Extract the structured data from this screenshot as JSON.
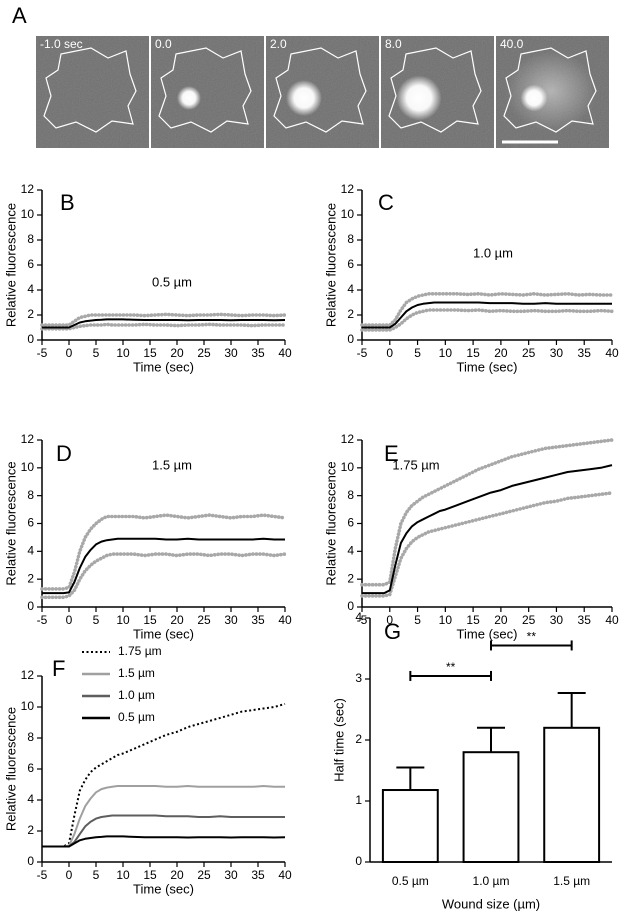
{
  "panel_a": {
    "label": "A",
    "frames": [
      "-1.0 sec",
      "0.0",
      "2.0",
      "8.0",
      "40.0"
    ]
  },
  "chart_data": [
    {
      "type": "scatter",
      "label": "B",
      "annotation": "0.5 µm",
      "xlabel": "Time (sec)",
      "ylabel": "Relative fluorescence",
      "x": [
        -5,
        -4,
        -3,
        -2,
        -1,
        0,
        1,
        2,
        3,
        4,
        5,
        6,
        7,
        8,
        9,
        10,
        12,
        14,
        16,
        18,
        20,
        22,
        24,
        26,
        28,
        30,
        32,
        34,
        36,
        38,
        40
      ],
      "xlim": [
        -5,
        40
      ],
      "xticks": [
        -5,
        0,
        5,
        10,
        15,
        20,
        25,
        30,
        35,
        40
      ],
      "ylim": [
        0,
        12
      ],
      "yticks": [
        0,
        2,
        4,
        6,
        8,
        10,
        12
      ],
      "series": [
        {
          "color": "#a8a8a8",
          "style": "dots",
          "values": [
            1.2,
            1.2,
            1.2,
            1.2,
            1.2,
            1.2,
            1.5,
            1.8,
            1.9,
            2.0,
            2.0,
            2.0,
            2.0,
            2.0,
            2.0,
            2.0,
            2.0,
            1.95,
            2.0,
            2.05,
            2.0,
            1.95,
            2.0,
            2.0,
            2.05,
            2.0,
            1.95,
            2.0,
            2.0,
            1.95,
            2.0
          ]
        },
        {
          "color": "#a8a8a8",
          "style": "dots",
          "values": [
            0.9,
            0.9,
            0.9,
            0.9,
            0.9,
            0.9,
            1.0,
            1.1,
            1.15,
            1.2,
            1.2,
            1.2,
            1.25,
            1.2,
            1.2,
            1.2,
            1.2,
            1.25,
            1.2,
            1.2,
            1.15,
            1.2,
            1.2,
            1.25,
            1.2,
            1.2,
            1.2,
            1.15,
            1.2,
            1.2,
            1.2
          ]
        },
        {
          "color": "#000000",
          "style": "solid",
          "values": [
            1.0,
            1.0,
            1.0,
            1.0,
            1.0,
            1.0,
            1.2,
            1.4,
            1.5,
            1.55,
            1.6,
            1.62,
            1.65,
            1.65,
            1.65,
            1.65,
            1.62,
            1.6,
            1.6,
            1.6,
            1.6,
            1.58,
            1.6,
            1.6,
            1.6,
            1.58,
            1.6,
            1.6,
            1.6,
            1.58,
            1.6
          ]
        }
      ]
    },
    {
      "type": "scatter",
      "label": "C",
      "annotation": "1.0 µm",
      "xlabel": "Time (sec)",
      "ylabel": "Relative fluorescence",
      "x": [
        -5,
        -4,
        -3,
        -2,
        -1,
        0,
        1,
        2,
        3,
        4,
        5,
        6,
        7,
        8,
        9,
        10,
        12,
        14,
        16,
        18,
        20,
        22,
        24,
        26,
        28,
        30,
        32,
        34,
        36,
        38,
        40
      ],
      "xlim": [
        -5,
        40
      ],
      "xticks": [
        -5,
        0,
        5,
        10,
        15,
        20,
        25,
        30,
        35,
        40
      ],
      "ylim": [
        0,
        12
      ],
      "yticks": [
        0,
        2,
        4,
        6,
        8,
        10,
        12
      ],
      "series": [
        {
          "color": "#a8a8a8",
          "style": "dots",
          "values": [
            1.2,
            1.2,
            1.2,
            1.2,
            1.2,
            1.2,
            1.6,
            2.4,
            3.0,
            3.3,
            3.5,
            3.6,
            3.7,
            3.7,
            3.7,
            3.7,
            3.7,
            3.65,
            3.7,
            3.6,
            3.7,
            3.65,
            3.6,
            3.7,
            3.6,
            3.65,
            3.7,
            3.6,
            3.65,
            3.6,
            3.6
          ]
        },
        {
          "color": "#a8a8a8",
          "style": "dots",
          "values": [
            0.8,
            0.8,
            0.8,
            0.8,
            0.8,
            0.8,
            1.0,
            1.3,
            1.7,
            2.0,
            2.2,
            2.3,
            2.4,
            2.4,
            2.4,
            2.4,
            2.4,
            2.35,
            2.4,
            2.3,
            2.35,
            2.3,
            2.3,
            2.35,
            2.3,
            2.3,
            2.35,
            2.3,
            2.3,
            2.35,
            2.3
          ]
        },
        {
          "color": "#000000",
          "style": "solid",
          "values": [
            1.0,
            1.0,
            1.0,
            1.0,
            1.0,
            1.0,
            1.3,
            1.8,
            2.3,
            2.6,
            2.8,
            2.9,
            2.95,
            3.0,
            3.0,
            3.0,
            3.0,
            3.0,
            3.0,
            2.95,
            2.95,
            2.95,
            2.9,
            2.9,
            2.95,
            2.9,
            2.9,
            2.9,
            2.9,
            2.9,
            2.9
          ]
        }
      ]
    },
    {
      "type": "scatter",
      "label": "D",
      "annotation": "1.5 µm",
      "xlabel": "Time (sec)",
      "ylabel": "Relative fluorescence",
      "x": [
        -5,
        -4,
        -3,
        -2,
        -1,
        0,
        1,
        2,
        3,
        4,
        5,
        6,
        7,
        8,
        9,
        10,
        12,
        14,
        16,
        18,
        20,
        22,
        24,
        26,
        28,
        30,
        32,
        34,
        36,
        38,
        40
      ],
      "xlim": [
        -5,
        40
      ],
      "xticks": [
        -5,
        0,
        5,
        10,
        15,
        20,
        25,
        30,
        35,
        40
      ],
      "ylim": [
        0,
        12
      ],
      "yticks": [
        0,
        2,
        4,
        6,
        8,
        10,
        12
      ],
      "series": [
        {
          "color": "#a8a8a8",
          "style": "dots",
          "values": [
            1.3,
            1.3,
            1.3,
            1.3,
            1.3,
            1.4,
            2.5,
            4.0,
            5.0,
            5.6,
            6.0,
            6.3,
            6.5,
            6.5,
            6.5,
            6.5,
            6.5,
            6.4,
            6.5,
            6.6,
            6.5,
            6.4,
            6.5,
            6.6,
            6.5,
            6.4,
            6.5,
            6.5,
            6.6,
            6.5,
            6.4
          ]
        },
        {
          "color": "#a8a8a8",
          "style": "dots",
          "values": [
            0.7,
            0.7,
            0.7,
            0.7,
            0.7,
            0.8,
            1.2,
            2.0,
            2.6,
            3.0,
            3.3,
            3.5,
            3.7,
            3.8,
            3.8,
            3.8,
            3.8,
            3.7,
            3.8,
            3.8,
            3.7,
            3.8,
            3.8,
            3.7,
            3.8,
            3.8,
            3.7,
            3.8,
            3.8,
            3.7,
            3.8
          ]
        },
        {
          "color": "#000000",
          "style": "solid",
          "values": [
            1.0,
            1.0,
            1.0,
            1.0,
            1.0,
            1.05,
            1.8,
            2.8,
            3.6,
            4.1,
            4.5,
            4.7,
            4.8,
            4.85,
            4.9,
            4.9,
            4.9,
            4.9,
            4.9,
            4.85,
            4.85,
            4.9,
            4.85,
            4.85,
            4.85,
            4.85,
            4.85,
            4.85,
            4.9,
            4.85,
            4.85
          ]
        }
      ]
    },
    {
      "type": "scatter",
      "label": "E",
      "annotation": "1.75 µm",
      "xlabel": "Time (sec)",
      "ylabel": "Relative fluorescence",
      "x": [
        -5,
        -4,
        -3,
        -2,
        -1,
        0,
        1,
        2,
        3,
        4,
        5,
        6,
        7,
        8,
        9,
        10,
        12,
        14,
        16,
        18,
        20,
        22,
        24,
        26,
        28,
        30,
        32,
        34,
        36,
        38,
        40
      ],
      "xlim": [
        -5,
        40
      ],
      "xticks": [
        -5,
        0,
        5,
        10,
        15,
        20,
        25,
        30,
        35,
        40
      ],
      "ylim": [
        0,
        12
      ],
      "yticks": [
        0,
        2,
        4,
        6,
        8,
        10,
        12
      ],
      "series": [
        {
          "color": "#a8a8a8",
          "style": "dots",
          "values": [
            1.6,
            1.6,
            1.6,
            1.6,
            1.6,
            1.8,
            4.2,
            6.0,
            6.8,
            7.3,
            7.6,
            7.9,
            8.1,
            8.3,
            8.5,
            8.7,
            9.1,
            9.5,
            9.9,
            10.2,
            10.5,
            10.8,
            11.0,
            11.2,
            11.4,
            11.5,
            11.6,
            11.7,
            11.8,
            11.9,
            12.0
          ]
        },
        {
          "color": "#a8a8a8",
          "style": "dots",
          "values": [
            0.8,
            0.8,
            0.8,
            0.8,
            0.8,
            0.9,
            2.2,
            3.5,
            4.2,
            4.7,
            5.0,
            5.2,
            5.4,
            5.5,
            5.6,
            5.7,
            5.9,
            6.1,
            6.3,
            6.5,
            6.7,
            6.9,
            7.1,
            7.3,
            7.5,
            7.6,
            7.8,
            7.9,
            8.0,
            8.1,
            8.2
          ]
        },
        {
          "color": "#000000",
          "style": "solid",
          "values": [
            1.0,
            1.0,
            1.0,
            1.0,
            1.0,
            1.2,
            3.0,
            4.6,
            5.3,
            5.8,
            6.1,
            6.3,
            6.5,
            6.7,
            6.9,
            7.0,
            7.3,
            7.6,
            7.9,
            8.2,
            8.4,
            8.7,
            8.9,
            9.1,
            9.3,
            9.5,
            9.7,
            9.8,
            9.9,
            10.0,
            10.2
          ]
        }
      ]
    },
    {
      "type": "line",
      "label": "F",
      "xlabel": "Time (sec)",
      "ylabel": "Relative fluorescence",
      "legend": "upper-left",
      "x": [
        -5,
        -4,
        -3,
        -2,
        -1,
        0,
        1,
        2,
        3,
        4,
        5,
        6,
        7,
        8,
        9,
        10,
        12,
        14,
        16,
        18,
        20,
        22,
        24,
        26,
        28,
        30,
        32,
        34,
        36,
        38,
        40
      ],
      "xlim": [
        -5,
        40
      ],
      "xticks": [
        -5,
        0,
        5,
        10,
        15,
        20,
        25,
        30,
        35,
        40
      ],
      "ylim": [
        0,
        12
      ],
      "yticks": [
        0,
        2,
        4,
        6,
        8,
        10,
        12
      ],
      "series": [
        {
          "name": "1.75 µm",
          "color": "#000000",
          "style": "dotted",
          "values": [
            1.0,
            1.0,
            1.0,
            1.0,
            1.0,
            1.2,
            3.0,
            4.6,
            5.3,
            5.8,
            6.1,
            6.3,
            6.5,
            6.7,
            6.9,
            7.0,
            7.3,
            7.6,
            7.9,
            8.2,
            8.4,
            8.7,
            8.9,
            9.1,
            9.3,
            9.5,
            9.7,
            9.8,
            9.9,
            10.0,
            10.2
          ]
        },
        {
          "name": "1.5 µm",
          "color": "#a0a0a0",
          "style": "solid",
          "values": [
            1.0,
            1.0,
            1.0,
            1.0,
            1.0,
            1.05,
            1.8,
            2.8,
            3.6,
            4.1,
            4.5,
            4.7,
            4.8,
            4.85,
            4.9,
            4.9,
            4.9,
            4.9,
            4.9,
            4.85,
            4.85,
            4.9,
            4.85,
            4.85,
            4.85,
            4.85,
            4.85,
            4.85,
            4.9,
            4.85,
            4.85
          ]
        },
        {
          "name": "1.0 µm",
          "color": "#5e5e5e",
          "style": "solid",
          "values": [
            1.0,
            1.0,
            1.0,
            1.0,
            1.0,
            1.0,
            1.3,
            1.8,
            2.3,
            2.6,
            2.8,
            2.9,
            2.95,
            3.0,
            3.0,
            3.0,
            3.0,
            3.0,
            3.0,
            2.95,
            2.95,
            2.95,
            2.9,
            2.9,
            2.95,
            2.9,
            2.9,
            2.9,
            2.9,
            2.9,
            2.9
          ]
        },
        {
          "name": "0.5 µm",
          "color": "#000000",
          "style": "solid",
          "values": [
            1.0,
            1.0,
            1.0,
            1.0,
            1.0,
            1.0,
            1.2,
            1.4,
            1.5,
            1.55,
            1.6,
            1.62,
            1.65,
            1.65,
            1.65,
            1.65,
            1.62,
            1.6,
            1.6,
            1.6,
            1.6,
            1.58,
            1.6,
            1.6,
            1.6,
            1.58,
            1.6,
            1.6,
            1.6,
            1.58,
            1.6
          ]
        }
      ]
    },
    {
      "type": "bar",
      "label": "G",
      "xlabel": "Wound size (µm)",
      "ylabel": "Half time (sec)",
      "categories": [
        "0.5 µm",
        "1.0 µm",
        "1.5 µm"
      ],
      "values": [
        1.18,
        1.8,
        2.2
      ],
      "errors": [
        0.37,
        0.4,
        0.57
      ],
      "color": "#ffffff",
      "ylim": [
        0,
        4
      ],
      "yticks": [
        0,
        1,
        2,
        3,
        4
      ],
      "significance": [
        {
          "text": "**",
          "between": [
            "0.5 µm",
            "1.0 µm"
          ],
          "y": 3.05
        },
        {
          "text": "**",
          "between": [
            "1.0 µm",
            "1.5 µm"
          ],
          "y": 3.55
        }
      ]
    }
  ]
}
